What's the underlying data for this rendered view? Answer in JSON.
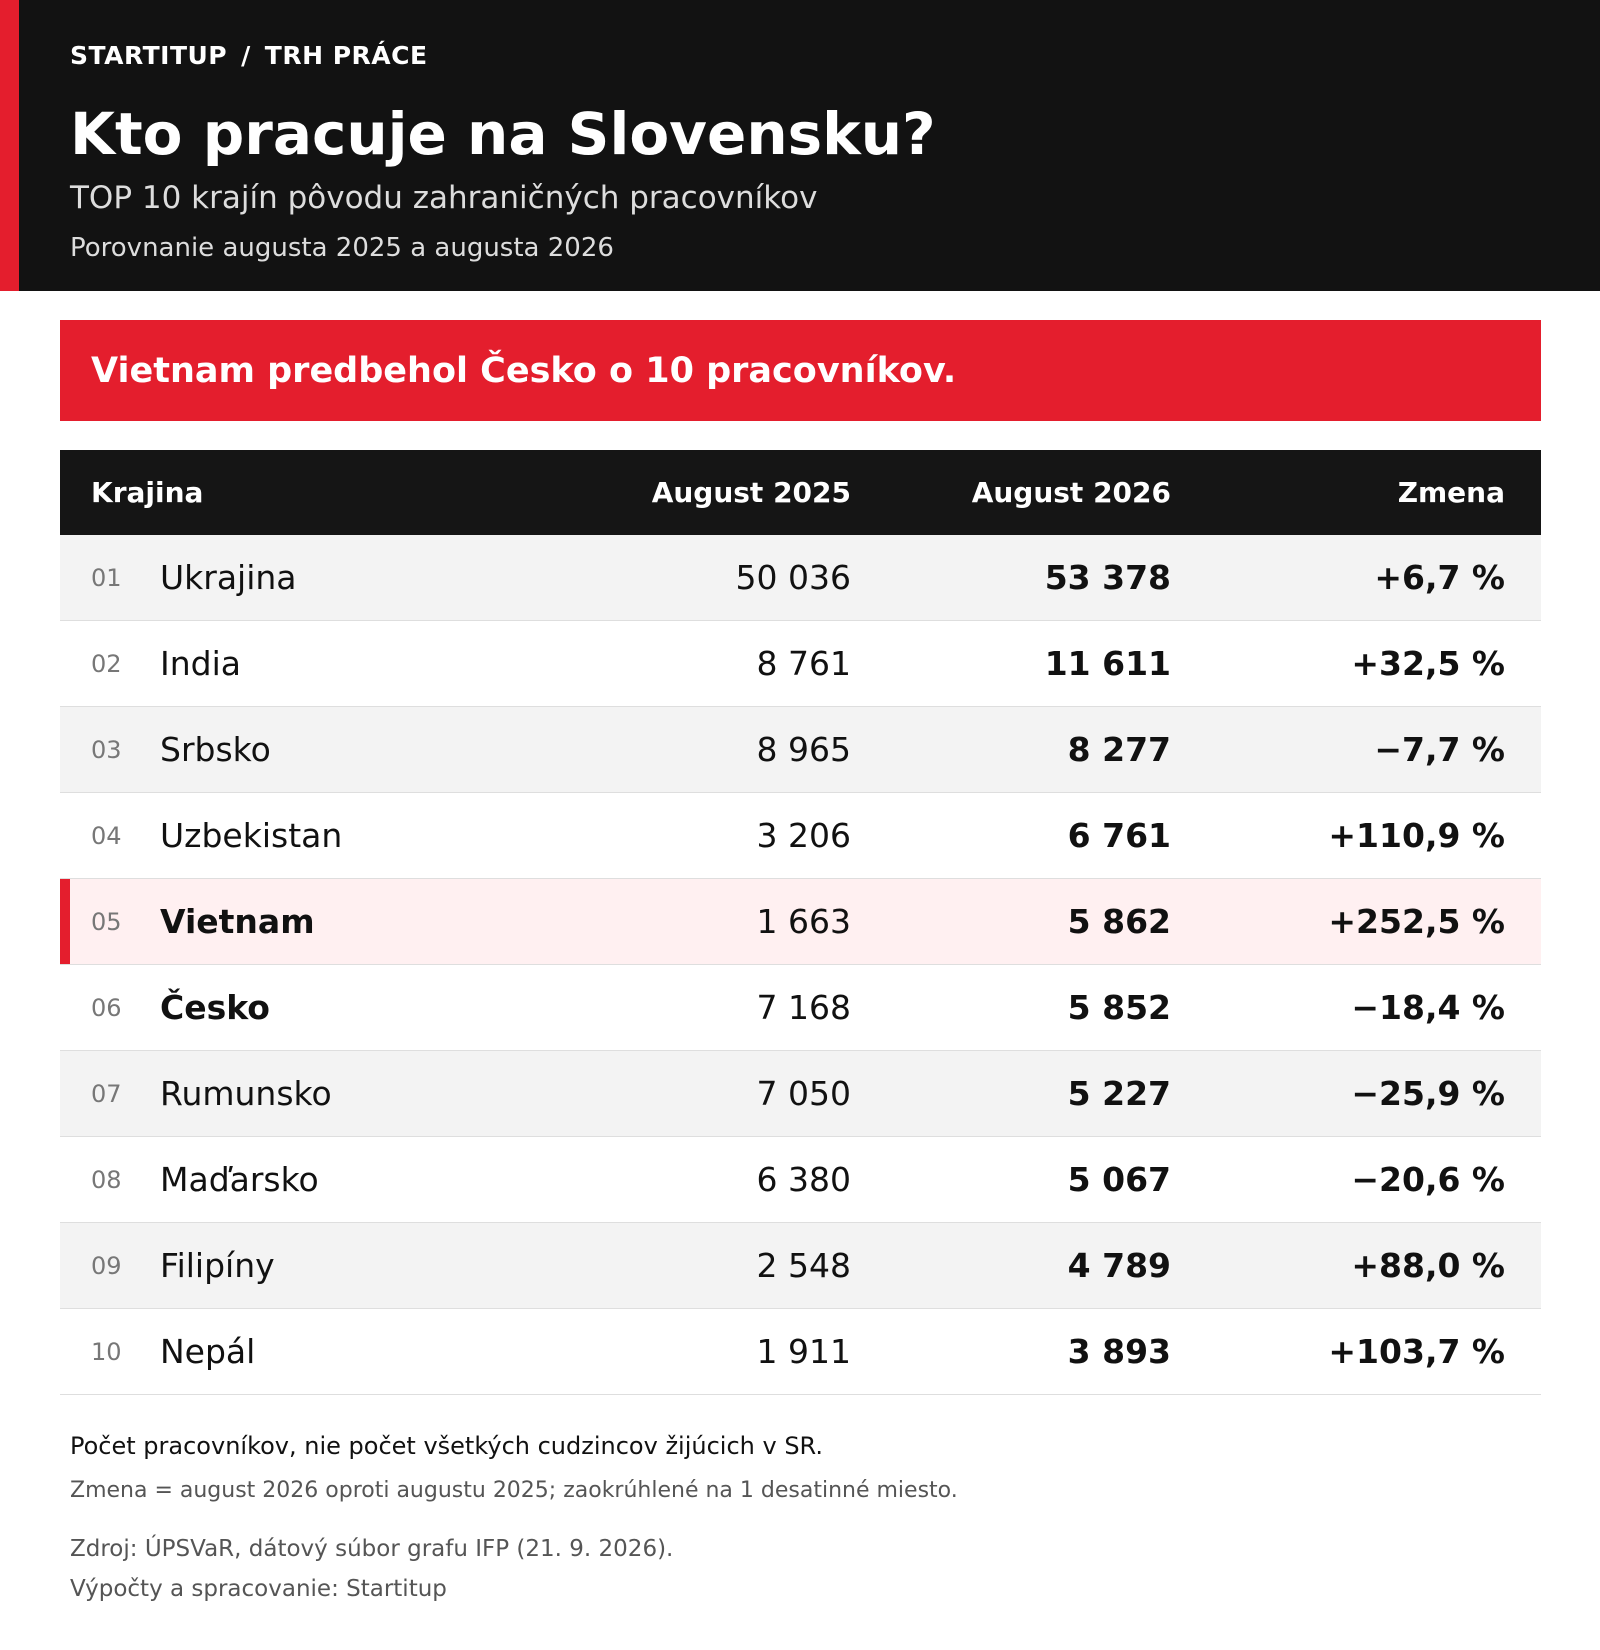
{
  "header": {
    "breadcrumb": [
      "STARTITUP",
      "TRH PRÁCE"
    ],
    "breadcrumb_separator": "/",
    "title": "Kto pracuje na Slovensku?",
    "subtitle": "TOP 10 krajín pôvodu zahraničných pracovníkov",
    "period": "Porovnanie augusta 2025 a augusta 2026"
  },
  "highlight": "Vietnam predbehol Česko o 10 pracovníkov.",
  "table": {
    "columns": [
      "Krajina",
      "August 2025",
      "August 2026",
      "Zmena"
    ],
    "rows": [
      {
        "rank": "01",
        "country": "Ukrajina",
        "aug2025": "50 036",
        "aug2026": "53 378",
        "change": "+6,7 %",
        "emphasis": false,
        "highlight": false
      },
      {
        "rank": "02",
        "country": "India",
        "aug2025": "8 761",
        "aug2026": "11 611",
        "change": "+32,5 %",
        "emphasis": false,
        "highlight": false
      },
      {
        "rank": "03",
        "country": "Srbsko",
        "aug2025": "8 965",
        "aug2026": "8 277",
        "change": "−7,7 %",
        "emphasis": false,
        "highlight": false
      },
      {
        "rank": "04",
        "country": "Uzbekistan",
        "aug2025": "3 206",
        "aug2026": "6 761",
        "change": "+110,9 %",
        "emphasis": false,
        "highlight": false
      },
      {
        "rank": "05",
        "country": "Vietnam",
        "aug2025": "1 663",
        "aug2026": "5 862",
        "change": "+252,5 %",
        "emphasis": true,
        "highlight": true
      },
      {
        "rank": "06",
        "country": "Česko",
        "aug2025": "7 168",
        "aug2026": "5 852",
        "change": "−18,4 %",
        "emphasis": true,
        "highlight": false
      },
      {
        "rank": "07",
        "country": "Rumunsko",
        "aug2025": "7 050",
        "aug2026": "5 227",
        "change": "−25,9 %",
        "emphasis": false,
        "highlight": false
      },
      {
        "rank": "08",
        "country": "Maďarsko",
        "aug2025": "6 380",
        "aug2026": "5 067",
        "change": "−20,6 %",
        "emphasis": false,
        "highlight": false
      },
      {
        "rank": "09",
        "country": "Filipíny",
        "aug2025": "2 548",
        "aug2026": "4 789",
        "change": "+88,0 %",
        "emphasis": false,
        "highlight": false
      },
      {
        "rank": "10",
        "country": "Nepál",
        "aug2025": "1 911",
        "aug2026": "3 893",
        "change": "+103,7 %",
        "emphasis": false,
        "highlight": false
      }
    ]
  },
  "footer": {
    "note1": "Počet pracovníkov, nie počet všetkých cudzincov žijúcich v SR.",
    "note2": "Zmena = august 2026 oproti augustu 2025; zaokrúhlené na 1 desatinné miesto.",
    "source": "Zdroj: ÚPSVaR, dátový súbor grafu IFP (21. 9. 2026).",
    "processing": "Výpočty a spracovanie: Startitup"
  },
  "colors": {
    "accent": "#e41e2d",
    "header_bg": "#121212",
    "highlight_row_bg": "#fff0f1"
  }
}
